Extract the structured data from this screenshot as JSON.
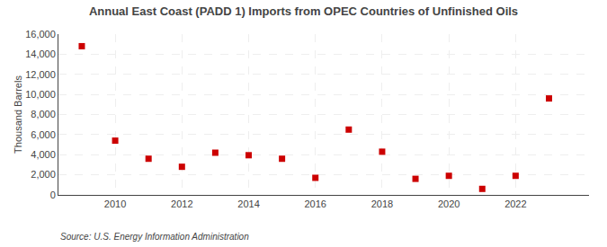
{
  "chart_data": {
    "type": "scatter",
    "title": "Annual East Coast (PADD 1) Imports from OPEC Countries of Unfinished Oils",
    "ylabel": "Thousand Barrels",
    "annotations": [
      "Source: U.S. Energy Information Administration"
    ],
    "x": [
      2009,
      2010,
      2011,
      2012,
      2013,
      2014,
      2015,
      2016,
      2017,
      2018,
      2019,
      2020,
      2021,
      2022,
      2023
    ],
    "values": [
      14800,
      5400,
      3600,
      2800,
      4200,
      3950,
      3600,
      1700,
      6500,
      4300,
      1600,
      1900,
      600,
      1900,
      9600
    ],
    "color": "#cc0000",
    "marker": "square",
    "xlim": [
      2008.3,
      2024.2
    ],
    "xticks": [
      2010,
      2012,
      2014,
      2016,
      2018,
      2020,
      2022
    ],
    "ylim": [
      0,
      16000
    ],
    "yticks": [
      0,
      {
        "value": 2000,
        "label": "2,000"
      },
      {
        "value": 4000,
        "label": "4,000"
      },
      {
        "value": 6000,
        "label": "6,000"
      },
      {
        "value": 8000,
        "label": "8,000"
      },
      {
        "value": 10000,
        "label": "10,000"
      },
      {
        "value": 12000,
        "label": "12,000"
      },
      {
        "value": 14000,
        "label": "14,000"
      },
      {
        "value": 16000,
        "label": "16,000"
      }
    ],
    "grid": true
  }
}
